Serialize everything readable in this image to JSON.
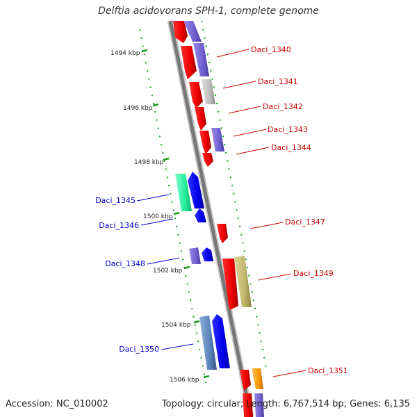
{
  "title": "Delftia acidovorans SPH-1, complete genome",
  "footer": {
    "accession": "Accession: NC_010002",
    "summary": "Topology: circular; Length: 6,767,514 bp; Genes: 6,135"
  },
  "ticks": [
    {
      "label": "1494 kbp"
    },
    {
      "label": "1496 kbp"
    },
    {
      "label": "1498 kbp"
    },
    {
      "label": "1500 kbp"
    },
    {
      "label": "1502 kbp"
    },
    {
      "label": "1504 kbp"
    },
    {
      "label": "1506 kbp"
    }
  ],
  "genes": [
    {
      "name": "Daci_1340",
      "strand": "forward",
      "color": "#cc0000"
    },
    {
      "name": "Daci_1341",
      "strand": "forward",
      "color": "#cc0000"
    },
    {
      "name": "Daci_1342",
      "strand": "forward",
      "color": "#cc0000"
    },
    {
      "name": "Daci_1343",
      "strand": "forward",
      "color": "#cc0000"
    },
    {
      "name": "Daci_1344",
      "strand": "forward",
      "color": "#cc0000"
    },
    {
      "name": "Daci_1345",
      "strand": "reverse",
      "color": "#0000cc"
    },
    {
      "name": "Daci_1346",
      "strand": "reverse",
      "color": "#0000cc"
    },
    {
      "name": "Daci_1347",
      "strand": "forward",
      "color": "#cc0000"
    },
    {
      "name": "Daci_1348",
      "strand": "reverse",
      "color": "#0000cc"
    },
    {
      "name": "Daci_1349",
      "strand": "forward",
      "color": "#cc0000"
    },
    {
      "name": "Daci_1350",
      "strand": "reverse",
      "color": "#0000cc"
    },
    {
      "name": "Daci_1351",
      "strand": "forward",
      "color": "#cc0000"
    }
  ]
}
